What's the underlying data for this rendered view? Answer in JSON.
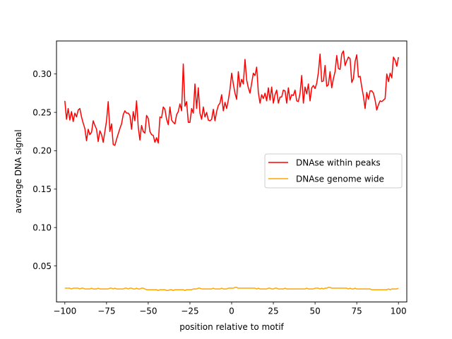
{
  "chart_data": {
    "type": "line",
    "xlabel": "position relative to motif",
    "ylabel": "average DNA signal",
    "xlim": [
      -105,
      105
    ],
    "ylim": [
      0.003,
      0.343
    ],
    "xticks": [
      -100,
      -75,
      -50,
      -25,
      0,
      25,
      50,
      75,
      100
    ],
    "xtick_labels": [
      "−100",
      "−75",
      "−50",
      "−25",
      "0",
      "25",
      "50",
      "75",
      "100"
    ],
    "yticks": [
      0.05,
      0.1,
      0.15,
      0.2,
      0.25,
      0.3
    ],
    "ytick_labels": [
      "0.05",
      "0.10",
      "0.15",
      "0.20",
      "0.25",
      "0.30"
    ],
    "grid": false,
    "legend_position": "center-right",
    "x": [
      -100,
      -99,
      -98,
      -97,
      -96,
      -95,
      -94,
      -93,
      -92,
      -91,
      -90,
      -89,
      -88,
      -87,
      -86,
      -85,
      -84,
      -83,
      -82,
      -81,
      -80,
      -79,
      -78,
      -77,
      -76,
      -75,
      -74,
      -73,
      -72,
      -71,
      -70,
      -69,
      -68,
      -67,
      -66,
      -65,
      -64,
      -63,
      -62,
      -61,
      -60,
      -59,
      -58,
      -57,
      -56,
      -55,
      -54,
      -53,
      -52,
      -51,
      -50,
      -49,
      -48,
      -47,
      -46,
      -45,
      -44,
      -43,
      -42,
      -41,
      -40,
      -39,
      -38,
      -37,
      -36,
      -35,
      -34,
      -33,
      -32,
      -31,
      -30,
      -29,
      -28,
      -27,
      -26,
      -25,
      -24,
      -23,
      -22,
      -21,
      -20,
      -19,
      -18,
      -17,
      -16,
      -15,
      -14,
      -13,
      -12,
      -11,
      -10,
      -9,
      -8,
      -7,
      -6,
      -5,
      -4,
      -3,
      -2,
      -1,
      0,
      1,
      2,
      3,
      4,
      5,
      6,
      7,
      8,
      9,
      10,
      11,
      12,
      13,
      14,
      15,
      16,
      17,
      18,
      19,
      20,
      21,
      22,
      23,
      24,
      25,
      26,
      27,
      28,
      29,
      30,
      31,
      32,
      33,
      34,
      35,
      36,
      37,
      38,
      39,
      40,
      41,
      42,
      43,
      44,
      45,
      46,
      47,
      48,
      49,
      50,
      51,
      52,
      53,
      54,
      55,
      56,
      57,
      58,
      59,
      60,
      61,
      62,
      63,
      64,
      65,
      66,
      67,
      68,
      69,
      70,
      71,
      72,
      73,
      74,
      75,
      76,
      77,
      78,
      79,
      80,
      81,
      82,
      83,
      84,
      85,
      86,
      87,
      88,
      89,
      90,
      91,
      92,
      93,
      94,
      95,
      96,
      97,
      98,
      99,
      100
    ],
    "series": [
      {
        "name": "DNAse within peaks",
        "color": "#ff0000",
        "values": [
          0.265,
          0.241,
          0.255,
          0.24,
          0.251,
          0.238,
          0.249,
          0.244,
          0.253,
          0.255,
          0.244,
          0.236,
          0.229,
          0.213,
          0.228,
          0.221,
          0.224,
          0.239,
          0.233,
          0.228,
          0.212,
          0.226,
          0.221,
          0.211,
          0.225,
          0.239,
          0.264,
          0.225,
          0.235,
          0.208,
          0.207,
          0.215,
          0.222,
          0.229,
          0.235,
          0.247,
          0.252,
          0.249,
          0.249,
          0.246,
          0.228,
          0.251,
          0.239,
          0.265,
          0.231,
          0.214,
          0.233,
          0.225,
          0.223,
          0.246,
          0.242,
          0.225,
          0.221,
          0.22,
          0.211,
          0.217,
          0.21,
          0.244,
          0.243,
          0.257,
          0.254,
          0.241,
          0.234,
          0.257,
          0.24,
          0.237,
          0.235,
          0.247,
          0.251,
          0.261,
          0.252,
          0.313,
          0.258,
          0.264,
          0.237,
          0.237,
          0.255,
          0.249,
          0.287,
          0.255,
          0.282,
          0.249,
          0.241,
          0.257,
          0.244,
          0.25,
          0.24,
          0.239,
          0.241,
          0.254,
          0.239,
          0.251,
          0.259,
          0.262,
          0.273,
          0.252,
          0.263,
          0.255,
          0.266,
          0.28,
          0.301,
          0.287,
          0.275,
          0.267,
          0.303,
          0.283,
          0.293,
          0.287,
          0.319,
          0.292,
          0.282,
          0.275,
          0.288,
          0.301,
          0.298,
          0.309,
          0.276,
          0.262,
          0.273,
          0.268,
          0.275,
          0.265,
          0.282,
          0.266,
          0.283,
          0.262,
          0.273,
          0.279,
          0.262,
          0.27,
          0.27,
          0.279,
          0.278,
          0.262,
          0.282,
          0.266,
          0.273,
          0.272,
          0.279,
          0.265,
          0.264,
          0.275,
          0.298,
          0.262,
          0.283,
          0.274,
          0.287,
          0.265,
          0.282,
          0.285,
          0.281,
          0.288,
          0.302,
          0.326,
          0.29,
          0.291,
          0.311,
          0.284,
          0.286,
          0.303,
          0.282,
          0.294,
          0.303,
          0.324,
          0.307,
          0.306,
          0.326,
          0.33,
          0.311,
          0.317,
          0.322,
          0.32,
          0.289,
          0.294,
          0.316,
          0.325,
          0.296,
          0.297,
          0.283,
          0.271,
          0.255,
          0.276,
          0.267,
          0.278,
          0.278,
          0.275,
          0.266,
          0.253,
          0.26,
          0.265,
          0.264,
          0.266,
          0.268,
          0.3,
          0.29,
          0.301,
          0.295,
          0.322,
          0.318,
          0.31,
          0.322
        ]
      },
      {
        "name": "DNAse genome wide",
        "color": "#ffa500",
        "values": [
          0.021,
          0.021,
          0.021,
          0.021,
          0.02,
          0.021,
          0.021,
          0.021,
          0.021,
          0.02,
          0.021,
          0.021,
          0.02,
          0.02,
          0.02,
          0.02,
          0.021,
          0.02,
          0.02,
          0.02,
          0.021,
          0.02,
          0.02,
          0.02,
          0.02,
          0.02,
          0.02,
          0.021,
          0.021,
          0.02,
          0.021,
          0.02,
          0.02,
          0.02,
          0.02,
          0.02,
          0.021,
          0.021,
          0.02,
          0.021,
          0.021,
          0.02,
          0.02,
          0.021,
          0.02,
          0.02,
          0.021,
          0.021,
          0.02,
          0.019,
          0.019,
          0.019,
          0.019,
          0.019,
          0.019,
          0.019,
          0.018,
          0.019,
          0.019,
          0.019,
          0.019,
          0.018,
          0.018,
          0.019,
          0.019,
          0.018,
          0.019,
          0.019,
          0.019,
          0.019,
          0.019,
          0.019,
          0.018,
          0.019,
          0.019,
          0.019,
          0.019,
          0.02,
          0.02,
          0.02,
          0.021,
          0.021,
          0.02,
          0.02,
          0.02,
          0.02,
          0.02,
          0.02,
          0.02,
          0.021,
          0.02,
          0.02,
          0.02,
          0.02,
          0.021,
          0.02,
          0.02,
          0.02,
          0.021,
          0.021,
          0.021,
          0.021,
          0.022,
          0.022,
          0.021,
          0.021,
          0.021,
          0.021,
          0.021,
          0.021,
          0.021,
          0.021,
          0.021,
          0.021,
          0.021,
          0.02,
          0.021,
          0.02,
          0.02,
          0.02,
          0.02,
          0.02,
          0.021,
          0.021,
          0.02,
          0.02,
          0.021,
          0.021,
          0.02,
          0.02,
          0.02,
          0.02,
          0.021,
          0.02,
          0.02,
          0.02,
          0.02,
          0.02,
          0.02,
          0.02,
          0.02,
          0.02,
          0.02,
          0.02,
          0.02,
          0.021,
          0.02,
          0.02,
          0.02,
          0.02,
          0.021,
          0.021,
          0.021,
          0.02,
          0.021,
          0.02,
          0.021,
          0.021,
          0.022,
          0.022,
          0.021,
          0.021,
          0.021,
          0.021,
          0.021,
          0.021,
          0.021,
          0.021,
          0.021,
          0.021,
          0.02,
          0.021,
          0.02,
          0.02,
          0.021,
          0.02,
          0.02,
          0.02,
          0.02,
          0.02,
          0.02,
          0.02,
          0.02,
          0.02,
          0.019,
          0.019,
          0.019,
          0.019,
          0.019,
          0.019,
          0.019,
          0.019,
          0.019,
          0.019,
          0.02,
          0.019,
          0.02,
          0.02,
          0.02,
          0.02,
          0.021
        ]
      }
    ]
  }
}
